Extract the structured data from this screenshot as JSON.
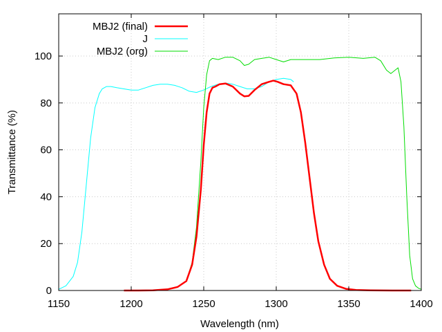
{
  "chart_data": {
    "type": "line",
    "title": "",
    "xlabel": "Wavelength (nm)",
    "ylabel": "Transmittance (%)",
    "xlim": [
      1150,
      1400
    ],
    "ylim": [
      0,
      118
    ],
    "xticks": [
      1150,
      1200,
      1250,
      1300,
      1350,
      1400
    ],
    "yticks": [
      0,
      20,
      40,
      60,
      80,
      100
    ],
    "grid": true,
    "legend_position": "top-left",
    "series": [
      {
        "name": "MBJ2 (final)",
        "color": "#ff0000",
        "x": [
          1195,
          1205,
          1215,
          1225,
          1232,
          1238,
          1242,
          1245,
          1248,
          1250,
          1252,
          1254,
          1256,
          1258,
          1261,
          1265,
          1270,
          1275,
          1278,
          1281,
          1285,
          1290,
          1295,
          1298,
          1301,
          1305,
          1310,
          1314,
          1317,
          1320,
          1323,
          1326,
          1329,
          1333,
          1337,
          1342,
          1348,
          1355,
          1365,
          1380,
          1393
        ],
        "y": [
          0,
          0,
          0.1,
          0.5,
          1.5,
          4,
          11,
          23,
          43,
          62,
          76,
          84,
          86.5,
          87,
          88,
          88.3,
          87,
          84,
          82.8,
          83,
          85.5,
          88,
          89,
          89.5,
          89,
          88,
          87.5,
          84,
          76,
          63,
          48,
          33,
          21,
          11,
          5,
          2,
          0.7,
          0.2,
          0.1,
          0,
          0
        ]
      },
      {
        "name": "J",
        "color": "#00ffff",
        "x": [
          1150,
          1155,
          1160,
          1163,
          1166,
          1169,
          1172,
          1175,
          1178,
          1180,
          1183,
          1186,
          1190,
          1195,
          1200,
          1205,
          1210,
          1215,
          1220,
          1225,
          1230,
          1235,
          1240,
          1245,
          1250,
          1255,
          1260,
          1265,
          1270,
          1275,
          1280,
          1285,
          1290,
          1295,
          1300,
          1305,
          1310,
          1312
        ],
        "y": [
          0.5,
          2,
          6,
          12,
          25,
          45,
          65,
          78,
          84,
          86,
          87,
          87,
          86.5,
          86,
          85.5,
          85.5,
          86.5,
          87.5,
          88,
          88,
          87.5,
          86.5,
          85,
          84.5,
          85.5,
          87,
          88,
          88.5,
          88,
          87,
          86,
          86,
          87,
          89,
          90,
          90.5,
          90,
          89
        ]
      },
      {
        "name": "MBJ2 (org)",
        "color": "#00dd00",
        "x": [
          1195,
          1205,
          1215,
          1225,
          1232,
          1238,
          1242,
          1245,
          1248,
          1250,
          1252,
          1254,
          1256,
          1260,
          1265,
          1270,
          1275,
          1278,
          1281,
          1285,
          1290,
          1295,
          1300,
          1305,
          1310,
          1320,
          1330,
          1340,
          1350,
          1360,
          1368,
          1372,
          1376,
          1379,
          1382,
          1384,
          1386,
          1388,
          1390,
          1392,
          1394,
          1396,
          1398,
          1400
        ],
        "y": [
          0,
          0,
          0.1,
          0.5,
          1.5,
          4,
          12,
          27,
          55,
          78,
          92,
          98,
          99,
          98.5,
          99.5,
          99.5,
          98,
          96,
          96.5,
          98.5,
          99,
          99.5,
          98.5,
          97.5,
          98.5,
          98.5,
          98.5,
          99.2,
          99.5,
          99,
          99.5,
          98,
          94,
          92.5,
          94,
          95,
          89,
          70,
          40,
          15,
          5,
          2,
          1,
          0.5
        ]
      }
    ]
  }
}
